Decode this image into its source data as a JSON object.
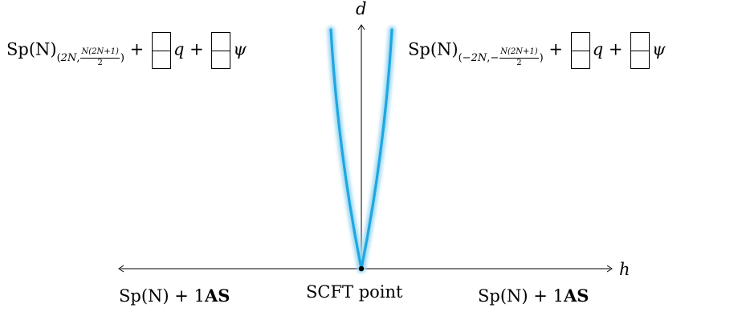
{
  "axes": {
    "horizontal_label": "h",
    "vertical_label": "d"
  },
  "points": {
    "origin_label": "SCFT point"
  },
  "regions": {
    "upper_left": {
      "group": "Sp(N)",
      "level": "2N",
      "cs_num": "N(2N+1)",
      "cs_den": "2",
      "matter_q": "q",
      "matter_psi": "ψ",
      "plus": "+"
    },
    "upper_right": {
      "group": "Sp(N)",
      "level": "−2N",
      "cs_num": "N(2N+1)",
      "cs_den": "2",
      "matter_q": "q",
      "matter_psi": "ψ",
      "plus": "+"
    },
    "lower_left": {
      "group": "Sp(N)",
      "plus": "+",
      "count": "1",
      "rep": "AS"
    },
    "lower_right": {
      "group": "Sp(N)",
      "plus": "+",
      "count": "1",
      "rep": "AS"
    }
  },
  "colors": {
    "phase_boundary": "#1ea7e1",
    "phase_boundary_glow": "#9fd8f2",
    "axis": "#000000"
  }
}
